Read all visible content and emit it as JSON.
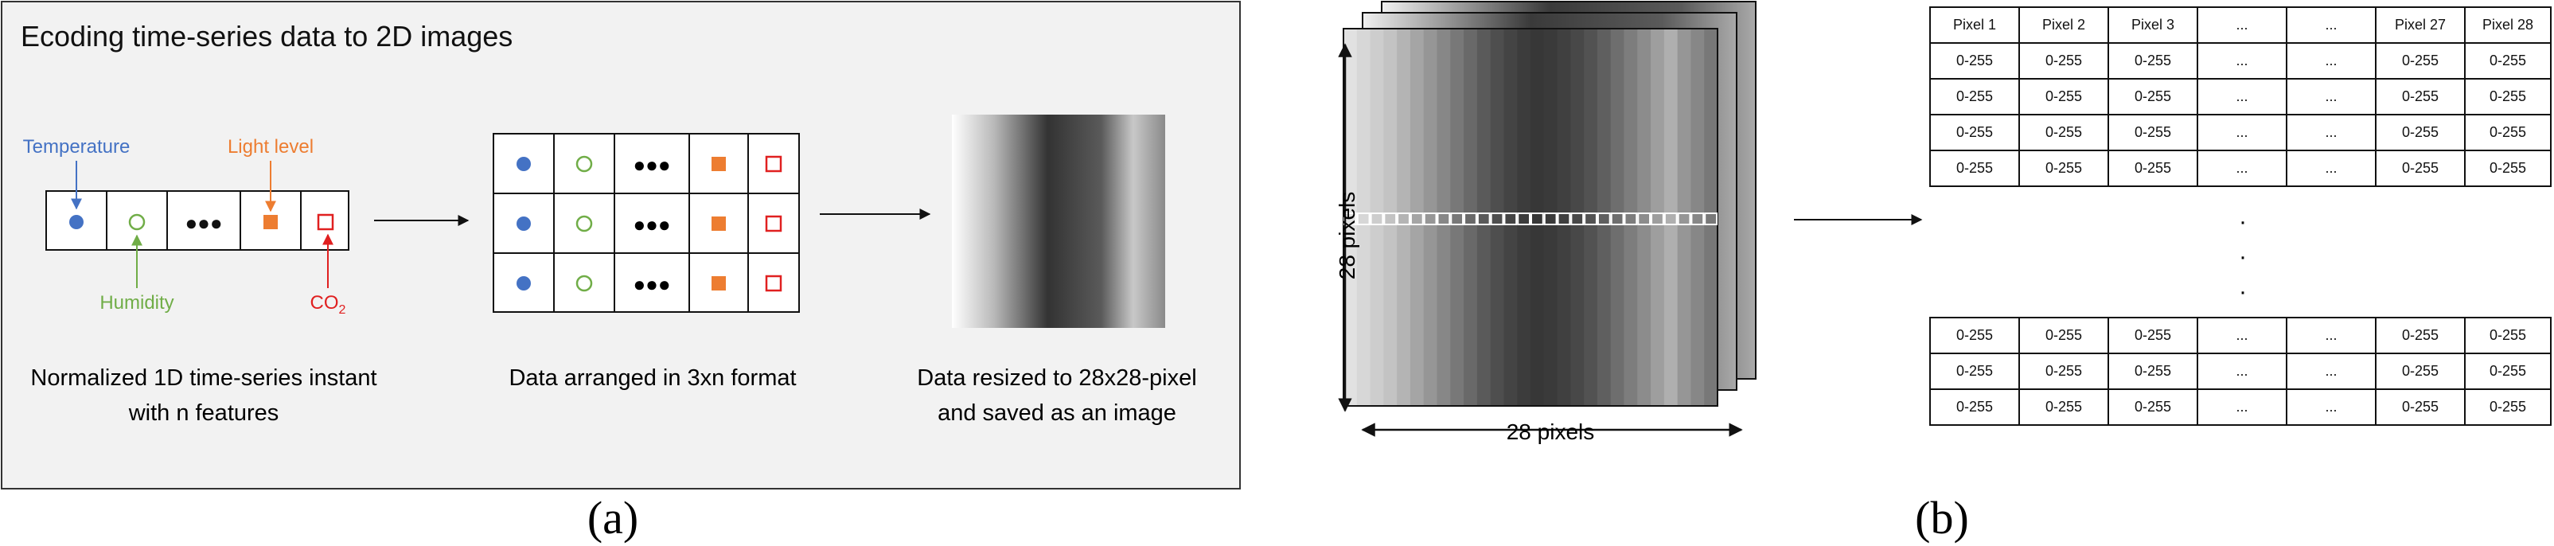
{
  "panel_a": {
    "title": "Ecoding time-series data to 2D images",
    "labels": {
      "temperature": "Temperature",
      "light_level": "Light level",
      "humidity": "Humidity",
      "co2_main": "CO",
      "co2_sub": "2"
    },
    "dots": "●●●",
    "captions": {
      "vector_line1": "Normalized 1D time-series instant",
      "vector_line2": "with n features",
      "matrix": "Data arranged in 3xn format",
      "image_line1": "Data resized to 28x28-pixel",
      "image_line2": "and saved as an image"
    },
    "colors": {
      "temperature": "#4472c4",
      "humidity": "#70ad47",
      "light_level": "#ed7d31",
      "co2": "#e02020"
    }
  },
  "panel_b": {
    "y_label": "28 pixels",
    "x_label": "28 pixels",
    "table_header": [
      "Pixel 1",
      "Pixel 2",
      "Pixel 3",
      "...",
      "...",
      "Pixel 27",
      "Pixel 28"
    ],
    "table_row": [
      "0-255",
      "0-255",
      "0-255",
      "...",
      "...",
      "0-255",
      "0-255"
    ],
    "vertical_ellipsis": [
      "·",
      "·",
      "·"
    ]
  },
  "subfig_labels": {
    "a": "(a)",
    "b": "(b)"
  }
}
